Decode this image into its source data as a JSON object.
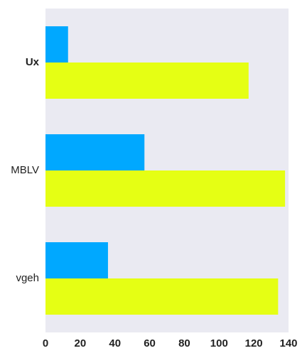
{
  "chart_data": {
    "type": "bar",
    "orientation": "horizontal",
    "categories": [
      "Ux",
      "MBLV",
      "vgeh"
    ],
    "category_label_bold": [
      true,
      false,
      false
    ],
    "series": [
      {
        "values": [
          13,
          57,
          36
        ],
        "color": "#00a8ff"
      },
      {
        "values": [
          117,
          138,
          134
        ],
        "color": "#e5ff14"
      }
    ],
    "x_ticks": [
      0,
      20,
      40,
      60,
      80,
      100,
      120,
      140
    ],
    "xlim": [
      0,
      140
    ],
    "grid": false,
    "background": "#eaeaf2",
    "title": "",
    "xlabel": "",
    "ylabel": ""
  }
}
